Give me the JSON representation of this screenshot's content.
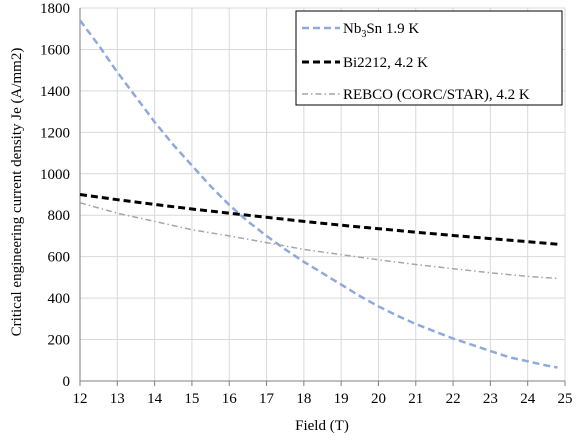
{
  "chart_data": {
    "type": "line",
    "xlabel": "Field (T)",
    "ylabel": "Critical engineering current density Je (A/mm2)",
    "xlim": [
      12,
      25
    ],
    "ylim": [
      0,
      1800
    ],
    "xticks": [
      12,
      13,
      14,
      15,
      16,
      17,
      18,
      19,
      20,
      21,
      22,
      23,
      24,
      25
    ],
    "yticks": [
      0,
      200,
      400,
      600,
      800,
      1000,
      1200,
      1400,
      1600,
      1800
    ],
    "grid": true,
    "legend_position": "top-right",
    "series": [
      {
        "name": "Nb3Sn 1.9 K",
        "name_main": "Nb",
        "name_sub": "3",
        "name_rest": "Sn 1.9 K",
        "color": "#8eaadb",
        "style": "dashed",
        "x": [
          12,
          12.5,
          13,
          13.5,
          14,
          14.5,
          15,
          15.5,
          16,
          16.5,
          17,
          17.5,
          18,
          18.5,
          19,
          19.5,
          20,
          20.5,
          21,
          21.5,
          22,
          22.5,
          23,
          23.5,
          24,
          24.5,
          24.8
        ],
        "y": [
          1740,
          1620,
          1490,
          1370,
          1250,
          1140,
          1040,
          940,
          850,
          770,
          700,
          635,
          575,
          520,
          465,
          410,
          360,
          315,
          275,
          240,
          205,
          175,
          145,
          115,
          95,
          75,
          65
        ]
      },
      {
        "name": "Bi2212, 4.2 K",
        "color": "#000000",
        "style": "dashed",
        "x": [
          12,
          13,
          14,
          15,
          16,
          17,
          18,
          19,
          20,
          21,
          22,
          23,
          24,
          24.8
        ],
        "y": [
          900,
          875,
          852,
          830,
          810,
          790,
          770,
          752,
          735,
          718,
          702,
          687,
          672,
          660
        ]
      },
      {
        "name": "REBCO (CORC/STAR), 4.2 K",
        "color": "#a6a6a6",
        "style": "dashdot",
        "x": [
          12,
          12.5,
          13,
          14,
          15,
          16,
          17,
          18,
          19,
          20,
          21,
          22,
          23,
          24,
          24.8
        ],
        "y": [
          860,
          835,
          810,
          770,
          730,
          700,
          668,
          635,
          610,
          585,
          562,
          542,
          522,
          505,
          495
        ]
      }
    ]
  }
}
